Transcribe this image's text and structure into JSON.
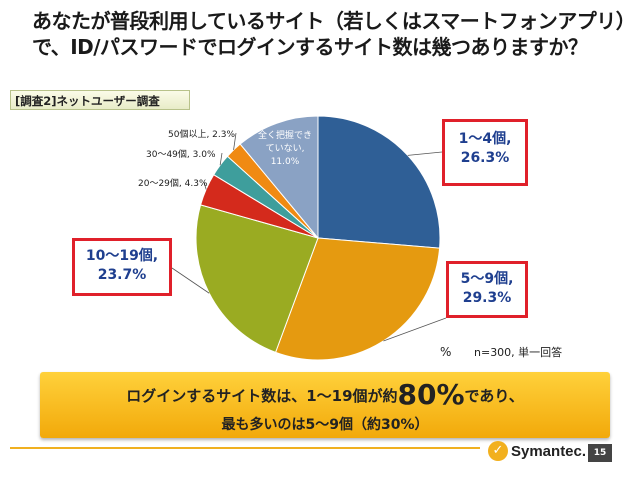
{
  "title": {
    "line1": "あなたが普段利用しているサイト（若しくはスマートフォンアプリ）",
    "line2": "で、ID/パスワードでログインするサイト数は幾つありますか？"
  },
  "survey_tag": "[調査2]ネットユーザー調査",
  "chart_data": {
    "type": "pie",
    "slices": [
      {
        "label": "1〜4個,",
        "value": 26.3,
        "color": "#2f5f96",
        "display": "26.3%"
      },
      {
        "label": "5〜9個,",
        "value": 29.3,
        "color": "#e59a10",
        "display": "29.3%"
      },
      {
        "label": "10〜19個,",
        "value": 23.7,
        "color": "#9aab22",
        "display": "23.7%"
      },
      {
        "label": "20〜29個,",
        "value": 4.3,
        "color": "#d42a1c",
        "display": "4.3%"
      },
      {
        "label": "30〜49個,",
        "value": 3.0,
        "color": "#3e9e9c",
        "display": "3.0%"
      },
      {
        "label": "50個以上,",
        "value": 2.3,
        "color": "#f08a12",
        "display": "2.3%"
      },
      {
        "label": "全く把握できていない,",
        "value": 11.0,
        "color": "#8aa2c4",
        "display": "11.0%"
      }
    ],
    "small_labels": {
      "s20": "20〜29個, 4.3%",
      "s30": "30〜49個, 3.0%",
      "s50": "50個以上, 2.3%"
    },
    "inner_label": {
      "line1": "全く把握でき",
      "line2": "ていない,",
      "line3": "11.0%"
    },
    "unit": "%",
    "sample_note": "n=300, 単一回答"
  },
  "banner": {
    "pre": "ログインするサイト数は、1〜19個が約",
    "big": "80%",
    "post": "であり、",
    "line2": "最も多いのは5〜9個（約30%）"
  },
  "footer": {
    "logo_mark": "✓",
    "logo_text": "Symantec.",
    "page": "15"
  },
  "colors": {
    "callout_border": "#e0202a",
    "callout_text": "#1f3f8f",
    "banner": "#f5b31c"
  }
}
